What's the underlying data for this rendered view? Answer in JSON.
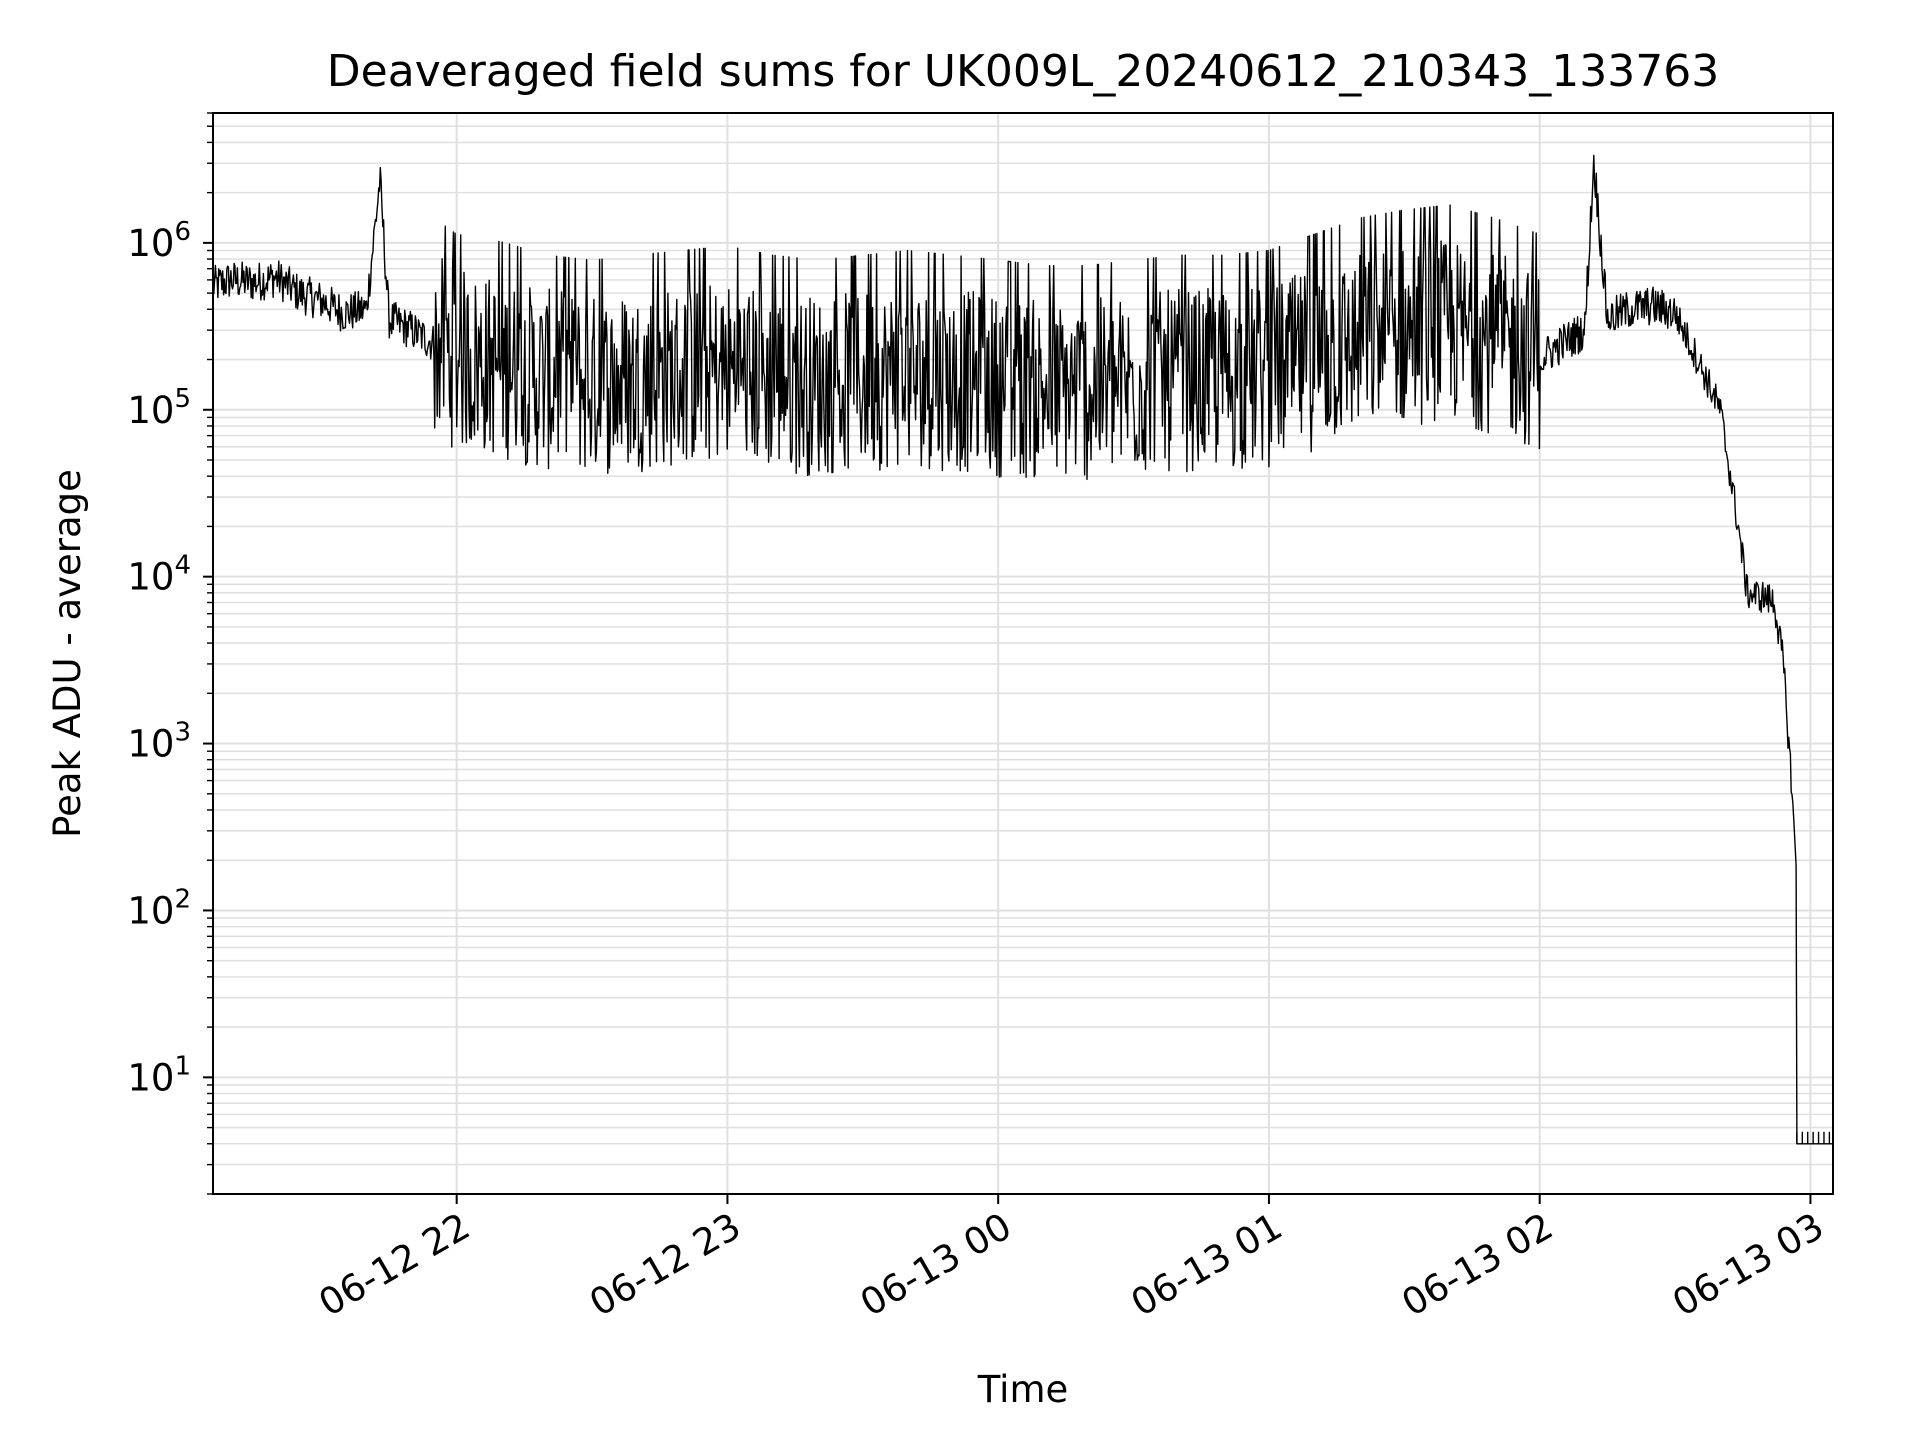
{
  "chart_data": {
    "type": "line",
    "title": "Deaveraged field sums for UK009L_20240612_210343_133763",
    "xlabel": "Time",
    "ylabel": "Peak ADU - average",
    "yscale": "log",
    "ylim": [
      2,
      6000000
    ],
    "xlim": [
      "06-12 21:06",
      "06-13 03:05"
    ],
    "grid": true,
    "line_color": "#000000",
    "grid_color": "#e0e0e0",
    "x_ticks": [
      {
        "value": "06-12 22:00",
        "label": "06-12 22"
      },
      {
        "value": "06-12 23:00",
        "label": "06-12 23"
      },
      {
        "value": "06-13 00:00",
        "label": "06-13 00"
      },
      {
        "value": "06-13 01:00",
        "label": "06-13 01"
      },
      {
        "value": "06-13 02:00",
        "label": "06-13 02"
      },
      {
        "value": "06-13 03:00",
        "label": "06-13 03"
      }
    ],
    "y_ticks": [
      {
        "value": 10,
        "base": "10",
        "exp": "1"
      },
      {
        "value": 100,
        "base": "10",
        "exp": "2"
      },
      {
        "value": 1000,
        "base": "10",
        "exp": "3"
      },
      {
        "value": 10000,
        "base": "10",
        "exp": "4"
      },
      {
        "value": 100000,
        "base": "10",
        "exp": "5"
      },
      {
        "value": 1000000,
        "base": "10",
        "exp": "6"
      }
    ],
    "series": [
      {
        "x": [
          "06-12 21:06",
          "06-12 21:10",
          "06-12 21:15",
          "06-12 21:20",
          "06-12 21:25",
          "06-12 21:30",
          "06-12 21:35",
          "06-12 21:40",
          "06-12 21:43",
          "06-12 21:45",
          "06-12 21:50",
          "06-12 21:55",
          "06-12 22:00",
          "06-12 22:10",
          "06-12 22:20",
          "06-12 22:30",
          "06-12 22:40",
          "06-12 22:50",
          "06-12 23:00",
          "06-12 23:10",
          "06-12 23:20",
          "06-12 23:30",
          "06-12 23:40",
          "06-12 23:50",
          "06-13 00:00",
          "06-13 00:10",
          "06-13 00:20",
          "06-13 00:30",
          "06-13 00:40",
          "06-13 00:50",
          "06-13 01:00",
          "06-13 01:10",
          "06-13 01:20",
          "06-13 01:30",
          "06-13 01:40",
          "06-13 01:50",
          "06-13 02:00",
          "06-13 02:05",
          "06-13 02:10",
          "06-13 02:12",
          "06-13 02:15",
          "06-13 02:20",
          "06-13 02:25",
          "06-13 02:30",
          "06-13 02:35",
          "06-13 02:40",
          "06-13 02:44",
          "06-13 02:46",
          "06-13 02:50",
          "06-13 02:52",
          "06-13 02:54",
          "06-13 02:55",
          "06-13 02:56",
          "06-13 02:57",
          "06-13 02:57",
          "06-13 03:05"
        ],
        "y": [
          550000,
          600000,
          580000,
          620000,
          500000,
          450000,
          380000,
          400000,
          2400000,
          350000,
          300000,
          250000,
          200000,
          180000,
          150000,
          140000,
          150000,
          160000,
          170000,
          150000,
          140000,
          150000,
          160000,
          150000,
          140000,
          130000,
          130000,
          140000,
          150000,
          150000,
          160000,
          200000,
          250000,
          280000,
          300000,
          250000,
          200000,
          250000,
          300000,
          3100000,
          350000,
          400000,
          420000,
          380000,
          200000,
          100000,
          20000,
          8000,
          7500,
          7000,
          3000,
          1200,
          500,
          150,
          4,
          4
        ]
      }
    ]
  }
}
